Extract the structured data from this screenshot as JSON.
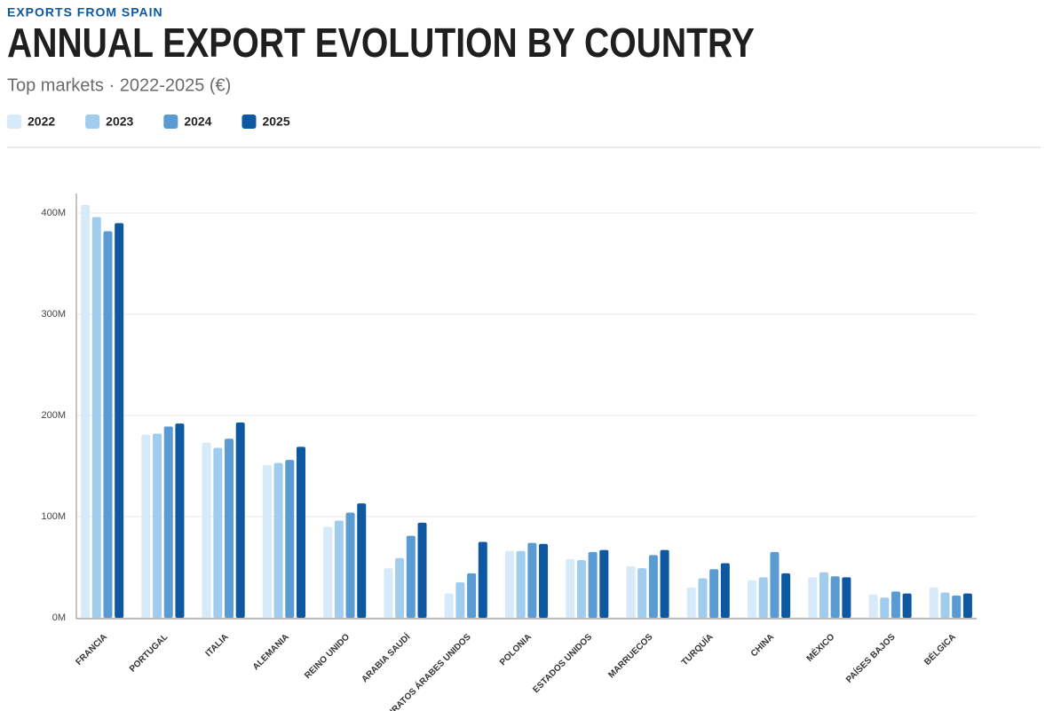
{
  "chart_data": {
    "type": "bar",
    "kicker": "EXPORTS FROM SPAIN",
    "title": "ANNUAL EXPORT EVOLUTION BY COUNTRY",
    "subtitle": "Top markets · 2022-2025 (€)",
    "categories": [
      "FRANCIA",
      "PORTUGAL",
      "ITALIA",
      "ALEMANIA",
      "REINO UNIDO",
      "ARABIA SAUDÍ",
      "EMIRATOS ÁRABES UNIDOS",
      "POLONIA",
      "ESTADOS UNIDOS",
      "MARRUECOS",
      "TURQUÍA",
      "CHINA",
      "MÉXICO",
      "PAÍSES BAJOS",
      "BÉLGICA"
    ],
    "series": [
      {
        "name": "2022",
        "color": "#d6eafa",
        "values": [
          408,
          181,
          173,
          151,
          90,
          49,
          24,
          66,
          58,
          51,
          30,
          37,
          40,
          23,
          30
        ]
      },
      {
        "name": "2023",
        "color": "#a0ccee",
        "values": [
          396,
          182,
          168,
          153,
          96,
          59,
          35,
          66,
          57,
          49,
          39,
          40,
          45,
          20,
          25
        ]
      },
      {
        "name": "2024",
        "color": "#5a9bd4",
        "values": [
          382,
          189,
          177,
          156,
          104,
          81,
          44,
          74,
          65,
          62,
          48,
          65,
          41,
          26,
          22
        ]
      },
      {
        "name": "2025",
        "color": "#0d58a0",
        "values": [
          390,
          192,
          193,
          169,
          113,
          94,
          75,
          73,
          67,
          67,
          54,
          44,
          40,
          24,
          24
        ]
      }
    ],
    "ylim": [
      0,
      400
    ],
    "yticks": [
      {
        "value": 0,
        "label": "0M"
      },
      {
        "value": 100,
        "label": "100M"
      },
      {
        "value": 200,
        "label": "200M"
      },
      {
        "value": 300,
        "label": "300M"
      },
      {
        "value": 400,
        "label": "400M"
      }
    ],
    "grid": true
  }
}
